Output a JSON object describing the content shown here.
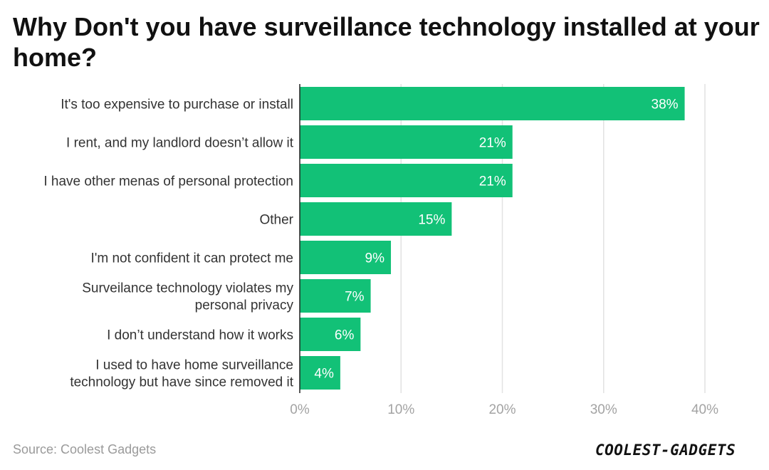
{
  "title": "Why Don't you have surveillance technology installed at your home?",
  "source": "Source: Coolest Gadgets",
  "brand_logo": "COOLEST-GADGETS",
  "colors": {
    "bar": "#12c177",
    "value_text": "#ffffff"
  },
  "chart_data": {
    "type": "bar",
    "orientation": "horizontal",
    "title": "Why Don't you have surveillance technology installed at your home?",
    "categories": [
      [
        "It's too expensive to purchase or install"
      ],
      [
        "I rent, and my landlord doesn’t allow it"
      ],
      [
        "I have other menas of personal protection"
      ],
      [
        "Other"
      ],
      [
        "I'm not confident it can protect me"
      ],
      [
        "Surveilance technology violates my",
        "personal privacy"
      ],
      [
        "I don’t understand how it works"
      ],
      [
        "I used to have home surveillance",
        "technology but have since removed it"
      ]
    ],
    "values": [
      38,
      21,
      21,
      15,
      9,
      7,
      6,
      4
    ],
    "value_labels": [
      "38%",
      "21%",
      "21%",
      "15%",
      "9%",
      "7%",
      "6%",
      "4%"
    ],
    "xlim": [
      0,
      40
    ],
    "xticks": [
      0,
      10,
      20,
      30,
      40
    ],
    "xtick_labels": [
      "0%",
      "10%",
      "20%",
      "30%",
      "40%"
    ],
    "grid": true,
    "xlabel": "",
    "ylabel": ""
  }
}
